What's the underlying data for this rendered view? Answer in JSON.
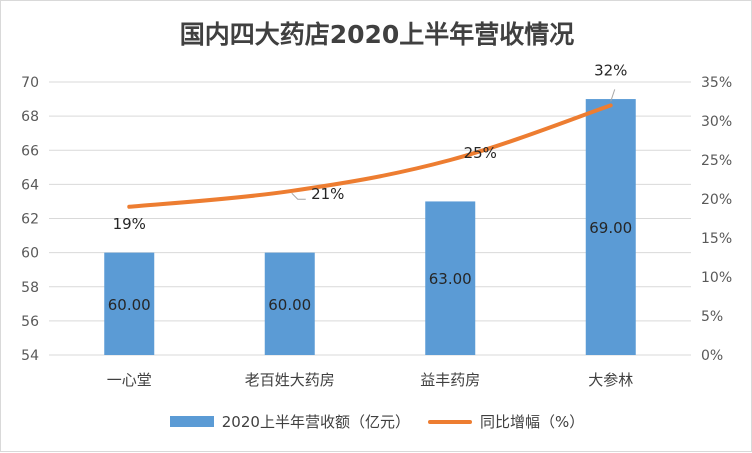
{
  "chart_data": {
    "type": "bar",
    "title": "国内四大药店2020上半年营收情况",
    "categories": [
      "一心堂",
      "老百姓大药房",
      "益丰药房",
      "大参林"
    ],
    "series": [
      {
        "name": "2020上半年营收额（亿元）",
        "type": "bar",
        "axis": "left",
        "values": [
          60.0,
          60.0,
          63.0,
          69.0
        ],
        "labels": [
          "60.00",
          "60.00",
          "63.00",
          "69.00"
        ],
        "color": "#5b9bd5"
      },
      {
        "name": "同比增幅（%）",
        "type": "line",
        "axis": "right",
        "values": [
          19,
          21,
          25,
          32
        ],
        "labels": [
          "19%",
          "21%",
          "25%",
          "32%"
        ],
        "color": "#ed7d31"
      }
    ],
    "y_left": {
      "ylim": [
        54,
        70
      ],
      "ticks": [
        "54",
        "56",
        "58",
        "60",
        "62",
        "64",
        "66",
        "68",
        "70"
      ]
    },
    "y_right": {
      "ylim": [
        0,
        35
      ],
      "ticks": [
        "0%",
        "5%",
        "10%",
        "15%",
        "20%",
        "25%",
        "30%",
        "35%"
      ]
    },
    "grid": true,
    "legend": "bottom"
  }
}
